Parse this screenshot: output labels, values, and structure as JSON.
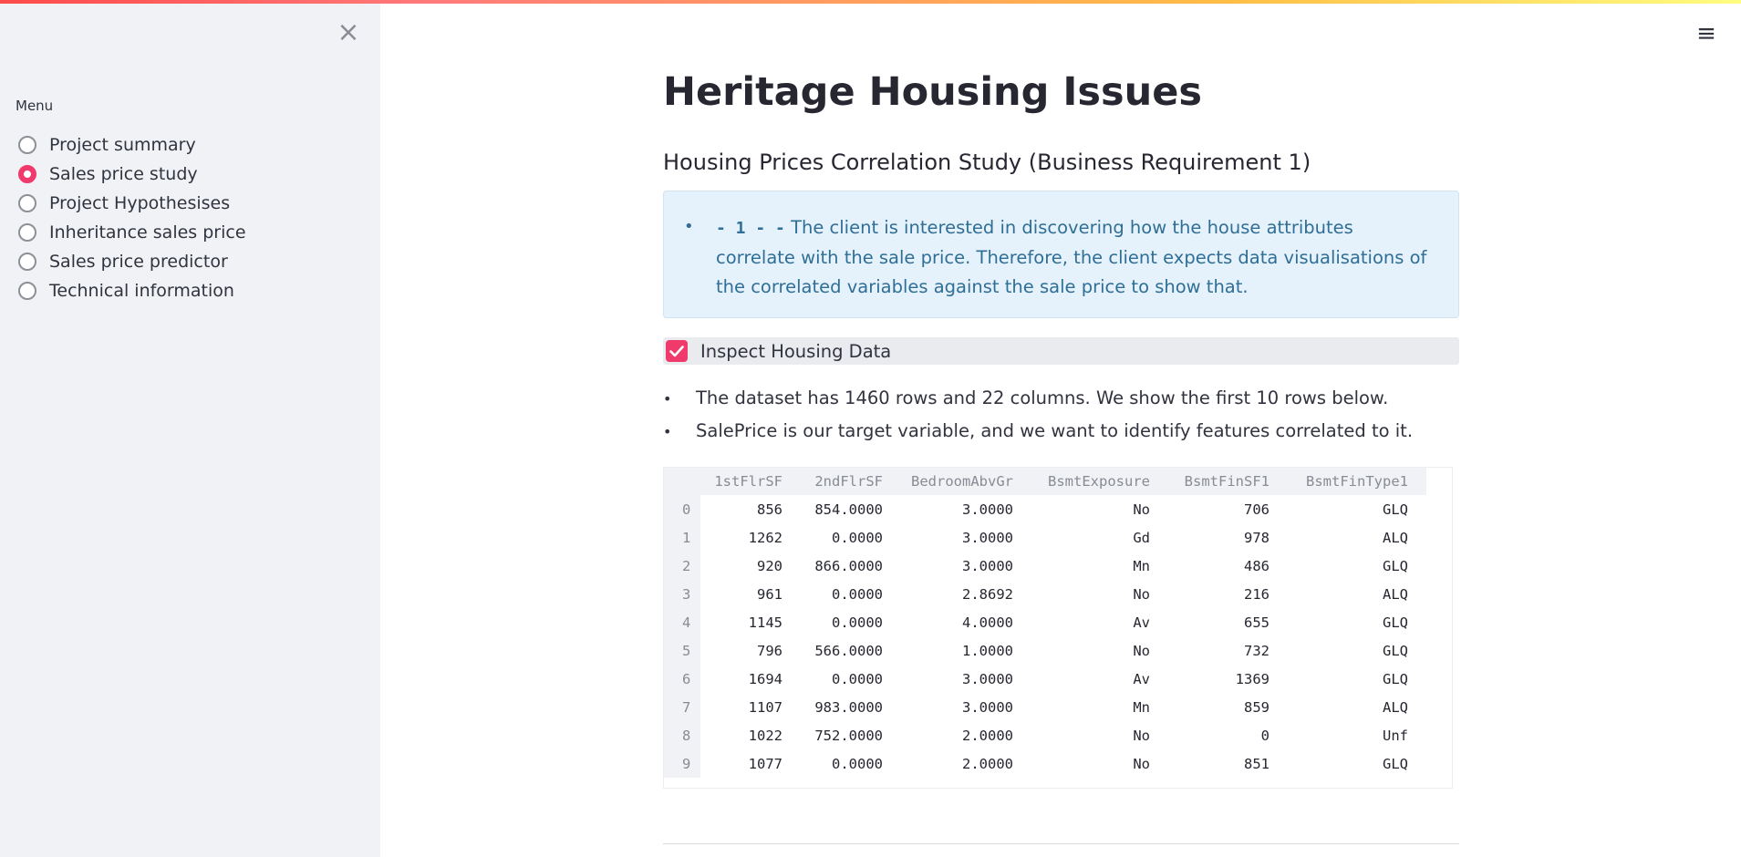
{
  "sidebar": {
    "menu_label": "Menu",
    "close_icon": "×",
    "items": [
      {
        "label": "Project summary",
        "checked": false
      },
      {
        "label": "Sales price study",
        "checked": true
      },
      {
        "label": "Project Hypothesises",
        "checked": false
      },
      {
        "label": "Inheritance sales price",
        "checked": false
      },
      {
        "label": "Sales price predictor",
        "checked": false
      },
      {
        "label": "Technical information",
        "checked": false
      }
    ]
  },
  "header": {
    "menu_icon": "≡"
  },
  "main": {
    "title": "Heritage Housing Issues",
    "subheader": "Housing Prices Correlation Study (Business Requirement 1)",
    "info": {
      "code": "- 1 - -",
      "text": "The client is interested in discovering how the house attributes correlate with the sale price. Therefore, the client expects data visualisations of the correlated variables against the sale price to show that."
    },
    "checkbox": {
      "label": "Inspect Housing Data",
      "checked": true
    },
    "bullets": [
      "The dataset has 1460 rows and 22 columns. We show the first 10 rows below.",
      "SalePrice is our target variable, and we want to identify features correlated to it."
    ],
    "table": {
      "columns": [
        "1stFlrSF",
        "2ndFlrSF",
        "BedroomAbvGr",
        "BsmtExposure",
        "BsmtFinSF1",
        "BsmtFinType1"
      ],
      "rows": [
        [
          "0",
          "856",
          "854.0000",
          "3.0000",
          "No",
          "706",
          "GLQ"
        ],
        [
          "1",
          "1262",
          "0.0000",
          "3.0000",
          "Gd",
          "978",
          "ALQ"
        ],
        [
          "2",
          "920",
          "866.0000",
          "3.0000",
          "Mn",
          "486",
          "GLQ"
        ],
        [
          "3",
          "961",
          "0.0000",
          "2.8692",
          "No",
          "216",
          "ALQ"
        ],
        [
          "4",
          "1145",
          "0.0000",
          "4.0000",
          "Av",
          "655",
          "GLQ"
        ],
        [
          "5",
          "796",
          "566.0000",
          "1.0000",
          "No",
          "732",
          "GLQ"
        ],
        [
          "6",
          "1694",
          "0.0000",
          "3.0000",
          "Av",
          "1369",
          "GLQ"
        ],
        [
          "7",
          "1107",
          "983.0000",
          "3.0000",
          "Mn",
          "859",
          "ALQ"
        ],
        [
          "8",
          "1022",
          "752.0000",
          "2.0000",
          "No",
          "0",
          "Unf"
        ],
        [
          "9",
          "1077",
          "0.0000",
          "2.0000",
          "No",
          "851",
          "GLQ"
        ]
      ]
    }
  },
  "colors": {
    "accent": "#f03a6c",
    "sidebar_bg": "#f0f2f6",
    "info_bg": "#e6f2fb",
    "info_text": "#2f6e95"
  }
}
